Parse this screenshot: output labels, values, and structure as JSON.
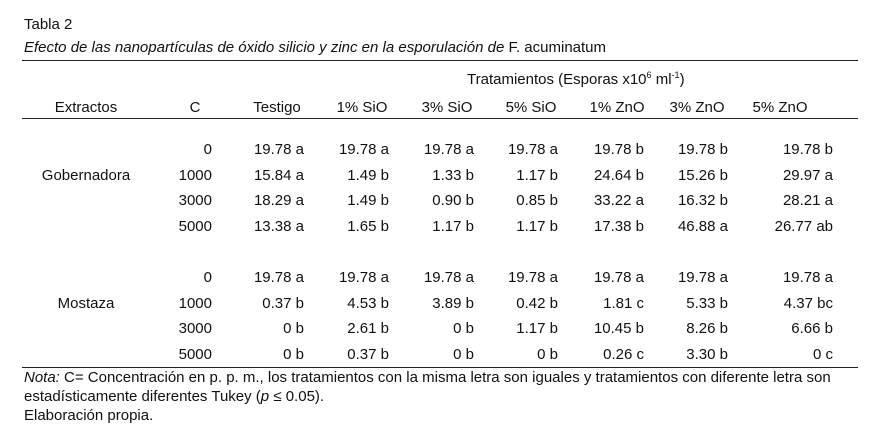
{
  "title": "Tabla 2",
  "subtitle": {
    "italic": "Efecto de las nanopartículas de óxido silicio y zinc en la esporulación de",
    "species": "F. acuminatum"
  },
  "table": {
    "group_heading": {
      "text": "Tratamientos (Esporas x10",
      "sup1": "6",
      "unit": "ml",
      "sup2": "-1",
      "close": ")"
    },
    "headers": [
      "Extractos",
      "C",
      "Testigo",
      "1% SiO",
      "3% SiO",
      "5% SiO",
      "1% ZnO",
      "3% ZnO",
      "5% ZnO"
    ],
    "groups": [
      {
        "name": "Gobernadora",
        "rows": [
          [
            "0",
            "19.78 a",
            "19.78 a",
            "19.78 a",
            "19.78 a",
            "19.78 b",
            "19.78 b",
            "19.78 b"
          ],
          [
            "1000",
            "15.84 a",
            "1.49 b",
            "1.33 b",
            "1.17 b",
            "24.64 b",
            "15.26 b",
            "29.97 a"
          ],
          [
            "3000",
            "18.29 a",
            "1.49 b",
            "0.90 b",
            "0.85 b",
            "33.22 a",
            "16.32 b",
            "28.21 a"
          ],
          [
            "5000",
            "13.38 a",
            "1.65 b",
            "1.17 b",
            "1.17 b",
            "17.38 b",
            "46.88 a",
            "26.77 ab"
          ]
        ]
      },
      {
        "name": "Mostaza",
        "rows": [
          [
            "0",
            "19.78 a",
            "19.78 a",
            "19.78 a",
            "19.78 a",
            "19.78 a",
            "19.78 a",
            "19.78 a"
          ],
          [
            "1000",
            "0.37 b",
            "4.53 b",
            "3.89 b",
            "0.42 b",
            "1.81 c",
            "5.33 b",
            "4.37 bc"
          ],
          [
            "3000",
            "0 b",
            "2.61 b",
            "0 b",
            "1.17 b",
            "10.45 b",
            "8.26 b",
            "6.66 b"
          ],
          [
            "5000",
            "0 b",
            "0.37 b",
            "0 b",
            "0 b",
            "0.26 c",
            "3.30 b",
            "0 c"
          ]
        ]
      }
    ]
  },
  "note": {
    "label": "Nota:",
    "text": "C= Concentración en p. p. m., los tratamientos con la misma letra son iguales y tratamientos con diferente letra son estadísticamente diferentes Tukey (",
    "p": "p",
    "end": "≤ 0.05).",
    "source": "Elaboración propia."
  }
}
